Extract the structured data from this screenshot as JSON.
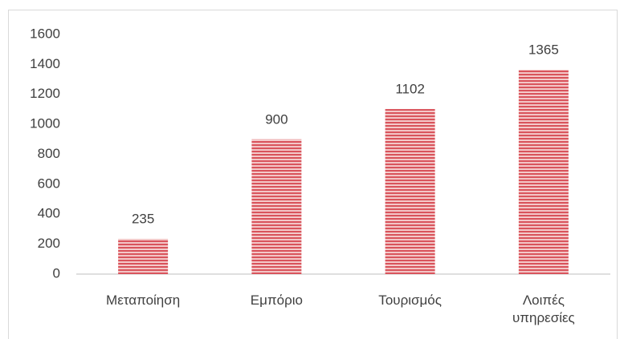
{
  "chart_data": {
    "type": "bar",
    "categories": [
      "Μεταποίηση",
      "Εμπόριο",
      "Τουρισμός",
      "Λοιπές υπηρεσίες"
    ],
    "values": [
      235,
      900,
      1102,
      1365
    ],
    "color": "#d9545c",
    "ylim": [
      0,
      1600
    ],
    "yticks": [
      0,
      200,
      400,
      600,
      800,
      1000,
      1200,
      1400,
      1600
    ],
    "grid": false
  }
}
